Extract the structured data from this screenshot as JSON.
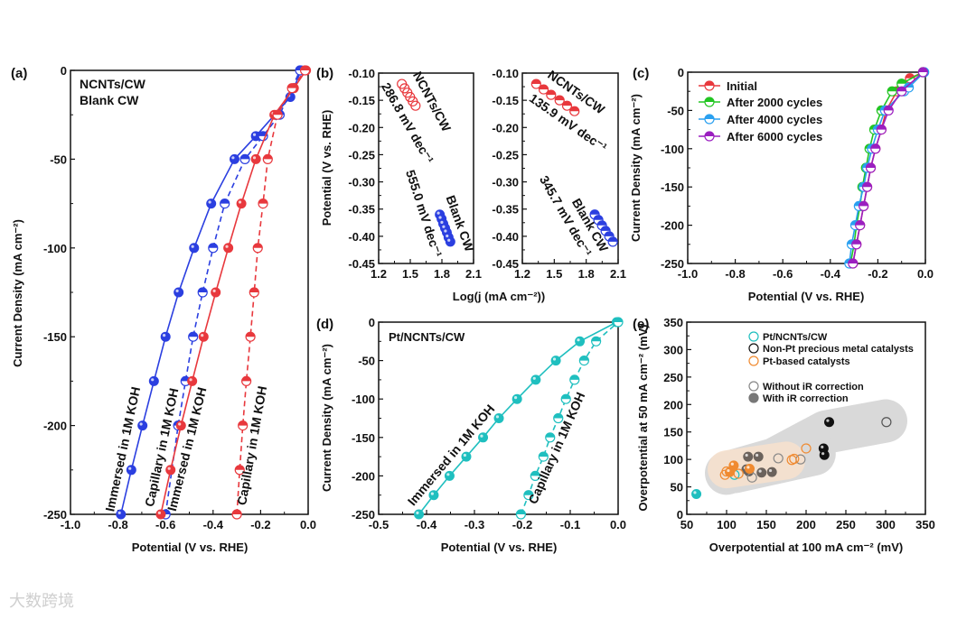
{
  "watermark": "大数跨境",
  "chart_data": [
    {
      "panel_label": "(a)",
      "type": "line",
      "xlabel": "Potential (V vs. RHE)",
      "ylabel": "Current Density (mA cm⁻²)",
      "xlim": [
        -1.0,
        0.0
      ],
      "ylim": [
        -250,
        0
      ],
      "xticks": [
        -1.0,
        -0.8,
        -0.6,
        -0.4,
        -0.2,
        0.0
      ],
      "xtick_labels": [
        "-1.0",
        "-0.8",
        "-0.6",
        "-0.4",
        "-0.2",
        "0.0"
      ],
      "yticks": [
        0,
        -50,
        -100,
        -150,
        -200,
        -250
      ],
      "ytick_labels": [
        "0",
        "-50",
        "-100",
        "-150",
        "-200",
        "-250"
      ],
      "legend": [
        {
          "text": "NCNTs/CW",
          "color": "#e8383d"
        },
        {
          "text": "Blank CW",
          "color": "#2b3fe0"
        }
      ],
      "series": [
        {
          "name": "Blank CW immersed",
          "color": "#2b3fe0",
          "line": "solid",
          "marker": "full",
          "x": [
            -0.788,
            -0.744,
            -0.697,
            -0.649,
            -0.6,
            -0.545,
            -0.48,
            -0.408,
            -0.31,
            -0.22,
            -0.075,
            -0.03
          ],
          "y": [
            -250,
            -225,
            -200,
            -175,
            -150,
            -125,
            -100,
            -75,
            -50,
            -37,
            -15,
            0
          ]
        },
        {
          "name": "Blank CW capillary",
          "color": "#2b3fe0",
          "line": "dashed",
          "marker": "half",
          "x": [
            -0.6,
            -0.547,
            -0.516,
            -0.484,
            -0.444,
            -0.4,
            -0.351,
            -0.266,
            -0.19,
            -0.12,
            -0.034
          ],
          "y": [
            -250,
            -200,
            -175,
            -150,
            -125,
            -100,
            -75,
            -50,
            -37,
            -25,
            0
          ]
        },
        {
          "name": "NCNTs/CW immersed",
          "color": "#e8383d",
          "line": "solid",
          "marker": "full",
          "x": [
            -0.62,
            -0.579,
            -0.535,
            -0.488,
            -0.44,
            -0.389,
            -0.336,
            -0.281,
            -0.22,
            -0.142,
            -0.06,
            -0.009
          ],
          "y": [
            -250,
            -225,
            -200,
            -175,
            -150,
            -125,
            -100,
            -75,
            -50,
            -25,
            -10,
            0
          ]
        },
        {
          "name": "NCNTs/CW capillary",
          "color": "#e8383d",
          "line": "dashed",
          "marker": "half",
          "x": [
            -0.3,
            -0.288,
            -0.275,
            -0.26,
            -0.243,
            -0.227,
            -0.212,
            -0.19,
            -0.17,
            -0.129,
            -0.068,
            -0.013
          ],
          "y": [
            -250,
            -225,
            -200,
            -175,
            -150,
            -125,
            -100,
            -75,
            -50,
            -25,
            -10,
            0
          ]
        }
      ],
      "annotations": [
        {
          "text": "Immersed in 1M KOH",
          "color": "#2b3fe0"
        },
        {
          "text": "Capillary in 1M KOH",
          "color": "#2b3fe0"
        },
        {
          "text": "Immersed in 1M KOH",
          "color": "#e8383d"
        },
        {
          "text": "Capillary in 1M KOH",
          "color": "#e8383d"
        }
      ]
    },
    {
      "panel_label": "(b)",
      "type": "scatter",
      "xlabel": "Log(j (mA cm⁻²))",
      "ylabel": "Potential (V vs. RHE)",
      "subplots": [
        {
          "xlim": [
            1.2,
            2.1
          ],
          "ylim": [
            -0.45,
            -0.1
          ],
          "xticks": [
            1.2,
            1.5,
            1.8,
            2.1
          ],
          "xtick_labels": [
            "1.2",
            "1.5",
            "1.8",
            "2.1"
          ],
          "yticks": [
            -0.1,
            -0.15,
            -0.2,
            -0.25,
            -0.3,
            -0.35,
            -0.4,
            -0.45
          ],
          "ytick_labels": [
            "-0.10",
            "-0.15",
            "-0.20",
            "-0.25",
            "-0.30",
            "-0.35",
            "-0.40",
            "-0.45"
          ],
          "series": [
            {
              "name": "NCNTs/CW",
              "color": "#e8383d",
              "line": "none",
              "marker": "open",
              "x": [
                1.42,
                1.446,
                1.472,
                1.498,
                1.524,
                1.55
              ],
              "y": [
                -0.12,
                -0.128,
                -0.136,
                -0.144,
                -0.152,
                -0.16
              ]
            },
            {
              "name": "Blank CW",
              "color": "#2b3fe0",
              "line": "none",
              "marker": "full",
              "x": [
                1.78,
                1.797,
                1.813,
                1.83,
                1.847,
                1.863,
                1.88
              ],
              "y": [
                -0.36,
                -0.368,
                -0.377,
                -0.385,
                -0.393,
                -0.402,
                -0.41
              ]
            }
          ],
          "annotations": [
            {
              "text": "NCNTs/CW",
              "color": "#e8383d"
            },
            {
              "text": "286.8 mV dec⁻¹",
              "color": "#e8383d"
            },
            {
              "text": "555.0 mV dec⁻¹",
              "color": "#2b3fe0"
            },
            {
              "text": "Blank CW",
              "color": "#2b3fe0"
            }
          ]
        },
        {
          "xlim": [
            1.2,
            2.1
          ],
          "ylim": [
            -0.45,
            -0.1
          ],
          "xticks": [
            1.2,
            1.5,
            1.8,
            2.1
          ],
          "xtick_labels": [
            "1.2",
            "1.5",
            "1.8",
            "2.1"
          ],
          "yticks": [
            -0.1,
            -0.15,
            -0.2,
            -0.25,
            -0.3,
            -0.35,
            -0.4,
            -0.45
          ],
          "ytick_labels": [
            "-0.10",
            "-0.15",
            "-0.20",
            "-0.25",
            "-0.30",
            "-0.35",
            "-0.40",
            "-0.45"
          ],
          "series": [
            {
              "name": "NCNTs/CW",
              "color": "#e8383d",
              "line": "none",
              "marker": "half",
              "x": [
                1.33,
                1.4,
                1.47,
                1.55,
                1.62,
                1.69
              ],
              "y": [
                -0.12,
                -0.13,
                -0.14,
                -0.15,
                -0.16,
                -0.17
              ]
            },
            {
              "name": "Blank CW",
              "color": "#2b3fe0",
              "line": "none",
              "marker": "half",
              "x": [
                1.88,
                1.914,
                1.948,
                1.982,
                2.016,
                2.05
              ],
              "y": [
                -0.36,
                -0.37,
                -0.38,
                -0.39,
                -0.4,
                -0.41
              ]
            }
          ],
          "annotations": [
            {
              "text": "NCNTs/CW",
              "color": "#e8383d"
            },
            {
              "text": "135.9 mV dec⁻¹",
              "color": "#e8383d"
            },
            {
              "text": "345.7 mV dec⁻¹",
              "color": "#2b3fe0"
            },
            {
              "text": "Blank CW",
              "color": "#2b3fe0"
            }
          ]
        }
      ]
    },
    {
      "panel_label": "(c)",
      "type": "line",
      "xlabel": "Potential (V vs. RHE)",
      "ylabel": "Current Density (mA cm⁻²)",
      "xlim": [
        -1.0,
        0.0
      ],
      "ylim": [
        -250,
        0
      ],
      "xticks": [
        -1.0,
        -0.8,
        -0.6,
        -0.4,
        -0.2,
        0.0
      ],
      "xtick_labels": [
        "-1.0",
        "-0.8",
        "-0.6",
        "-0.4",
        "-0.2",
        "0.0"
      ],
      "yticks": [
        0,
        -50,
        -100,
        -150,
        -200,
        -250
      ],
      "ytick_labels": [
        "0",
        "-50",
        "-100",
        "-150",
        "-200",
        "-250"
      ],
      "series": [
        {
          "name": "Initial",
          "color": "#e8383d",
          "line": "solid",
          "marker": "half",
          "x": [
            -0.305,
            -0.29,
            -0.275,
            -0.26,
            -0.245,
            -0.23,
            -0.21,
            -0.185,
            -0.165,
            -0.12,
            -0.065,
            -0.01
          ],
          "y": [
            -250,
            -225,
            -200,
            -175,
            -150,
            -125,
            -100,
            -75,
            -50,
            -25,
            -8,
            0
          ]
        },
        {
          "name": "After 2000 cycles",
          "color": "#22c522",
          "line": "solid",
          "marker": "half",
          "x": [
            -0.315,
            -0.3,
            -0.29,
            -0.275,
            -0.265,
            -0.25,
            -0.235,
            -0.215,
            -0.185,
            -0.14,
            -0.1,
            -0.01
          ],
          "y": [
            -250,
            -225,
            -200,
            -175,
            -150,
            -125,
            -100,
            -75,
            -50,
            -25,
            -15,
            0
          ]
        },
        {
          "name": "After 4000 cycles",
          "color": "#2aa0f0",
          "line": "solid",
          "marker": "half",
          "x": [
            -0.32,
            -0.31,
            -0.295,
            -0.28,
            -0.26,
            -0.245,
            -0.225,
            -0.2,
            -0.17,
            -0.09,
            -0.07,
            -0.005
          ],
          "y": [
            -250,
            -225,
            -200,
            -175,
            -150,
            -125,
            -100,
            -75,
            -50,
            -25,
            -20,
            0
          ]
        },
        {
          "name": "After 6000 cycles",
          "color": "#9b1fc0",
          "line": "solid",
          "marker": "half",
          "x": [
            -0.305,
            -0.29,
            -0.275,
            -0.26,
            -0.245,
            -0.23,
            -0.21,
            -0.185,
            -0.155,
            -0.1,
            -0.01
          ],
          "y": [
            -250,
            -225,
            -200,
            -175,
            -150,
            -125,
            -100,
            -75,
            -50,
            -25,
            0
          ]
        }
      ]
    },
    {
      "panel_label": "(d)",
      "type": "line",
      "xlabel": "Potential (V vs. RHE)",
      "ylabel": "Current Density (mA cm⁻²)",
      "xlim": [
        -0.5,
        0.0
      ],
      "ylim": [
        -250,
        0
      ],
      "xticks": [
        -0.5,
        -0.4,
        -0.3,
        -0.2,
        -0.1,
        0.0
      ],
      "xtick_labels": [
        "-0.5",
        "-0.4",
        "-0.3",
        "-0.2",
        "-0.1",
        "0.0"
      ],
      "yticks": [
        0,
        -50,
        -100,
        -150,
        -200,
        -250
      ],
      "ytick_labels": [
        "0",
        "-50",
        "-100",
        "-150",
        "-200",
        "-250"
      ],
      "title": "Pt/NCNTs/CW",
      "series": [
        {
          "name": "Immersed in 1M KOH",
          "color": "#1fbfbf",
          "line": "solid",
          "marker": "full",
          "x": [
            -0.416,
            -0.385,
            -0.352,
            -0.317,
            -0.282,
            -0.249,
            -0.211,
            -0.172,
            -0.13,
            -0.08,
            -0.003
          ],
          "y": [
            -250,
            -225,
            -200,
            -175,
            -150,
            -125,
            -100,
            -75,
            -50,
            -25,
            0
          ]
        },
        {
          "name": "Capillary in 1M KOH",
          "color": "#1fbfbf",
          "line": "dashed",
          "marker": "half",
          "x": [
            -0.203,
            -0.187,
            -0.173,
            -0.156,
            -0.142,
            -0.125,
            -0.109,
            -0.091,
            -0.071,
            -0.046,
            0.0
          ],
          "y": [
            -250,
            -225,
            -200,
            -175,
            -150,
            -125,
            -100,
            -75,
            -50,
            -25,
            0
          ]
        }
      ],
      "annotations": [
        {
          "text": "Immersed in 1M KOH",
          "color": "#1fbfbf"
        },
        {
          "text": "Capillary in 1M KOH",
          "color": "#1fbfbf"
        }
      ]
    },
    {
      "panel_label": "(e)",
      "type": "scatter",
      "xlabel": "Overpotential at 100 mA cm⁻² (mV)",
      "ylabel": "Overpotential at 50 mA cm⁻² (mV)",
      "xlim": [
        50,
        350
      ],
      "ylim": [
        0,
        350
      ],
      "xticks": [
        50,
        100,
        150,
        200,
        250,
        300,
        350
      ],
      "xtick_labels": [
        "50",
        "100",
        "150",
        "200",
        "250",
        "300",
        "350"
      ],
      "yticks": [
        0,
        50,
        100,
        150,
        200,
        250,
        300,
        350
      ],
      "ytick_labels": [
        "0",
        "50",
        "100",
        "150",
        "200",
        "250",
        "300",
        "350"
      ],
      "shaded_regions": [
        {
          "color": "#d9d9d9",
          "path": [
            [
              100,
              75
            ],
            [
              160,
              100
            ],
            [
              225,
              150
            ],
            [
              300,
              170
            ]
          ]
        },
        {
          "color": "#d9d9d9",
          "path": [
            [
              110,
              78
            ],
            [
              210,
              110
            ]
          ]
        },
        {
          "color": "#f7e0cc",
          "path": [
            [
              100,
              82
            ],
            [
              175,
              98
            ]
          ]
        }
      ],
      "legend": [
        {
          "text": "Pt/NCNTs/CW",
          "color": "#1fbfbf",
          "marker": "open"
        },
        {
          "text": "Non-Pt precious metal catalysts",
          "color": "#111111",
          "marker": "open"
        },
        {
          "text": "Pt-based catalysts",
          "color": "#f08a30",
          "marker": "open"
        },
        {
          "text": "Without iR correction",
          "color": "#888888",
          "marker": "open"
        },
        {
          "text": "With iR correction",
          "color": "#777777",
          "marker": "full"
        }
      ],
      "series": [
        {
          "name": "Pt/NCNTs/CW with iR",
          "color": "#1fbfbf",
          "marker": "full",
          "x": [
            62
          ],
          "y": [
            37
          ]
        },
        {
          "name": "Pt/NCNTs/CW without iR",
          "color": "#1fbfbf",
          "marker": "open",
          "x": [
            110
          ],
          "y": [
            72
          ]
        },
        {
          "name": "Non-Pt with iR",
          "color": "#111111",
          "marker": "full",
          "x": [
            229,
            222,
            223
          ],
          "y": [
            168,
            120,
            108
          ]
        },
        {
          "name": "Non-Pt without iR",
          "color": "#555555",
          "marker": "open",
          "x": [
            301
          ],
          "y": [
            168
          ]
        },
        {
          "name": "Other with iR",
          "color": "#6b625c",
          "marker": "full",
          "x": [
            127,
            140,
            125,
            128,
            144,
            157
          ],
          "y": [
            105,
            105,
            82,
            78,
            76,
            77
          ]
        },
        {
          "name": "Other without iR",
          "color": "#888888",
          "marker": "open",
          "x": [
            165,
            193,
            132
          ],
          "y": [
            102,
            100,
            67
          ]
        },
        {
          "name": "Pt-based without iR",
          "color": "#f08a30",
          "marker": "open",
          "x": [
            200,
            182,
            185,
            98,
            100,
            115
          ],
          "y": [
            120,
            99,
            101,
            72,
            78,
            74
          ]
        },
        {
          "name": "Pt-based with iR",
          "color": "#f08a30",
          "marker": "full",
          "x": [
            109,
            129,
            104
          ],
          "y": [
            89,
            83,
            77
          ]
        }
      ]
    }
  ]
}
